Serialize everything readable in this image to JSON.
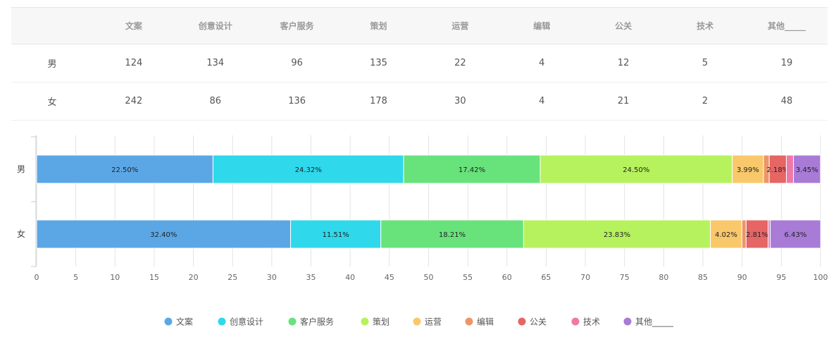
{
  "table": {
    "corner": "",
    "headers": [
      "文案",
      "创意设计",
      "客户服务",
      "策划",
      "运营",
      "编辑",
      "公关",
      "技术",
      "其他_____"
    ],
    "rows": [
      {
        "label": "男",
        "values": [
          "124",
          "134",
          "96",
          "135",
          "22",
          "4",
          "12",
          "5",
          "19"
        ]
      },
      {
        "label": "女",
        "values": [
          "242",
          "86",
          "136",
          "178",
          "30",
          "4",
          "21",
          "2",
          "48"
        ]
      }
    ]
  },
  "chart_data": {
    "type": "bar",
    "orientation": "horizontal",
    "stacked": true,
    "categories": [
      "男",
      "女"
    ],
    "xlim": [
      0,
      100
    ],
    "xticks": [
      0,
      5,
      10,
      15,
      20,
      25,
      30,
      35,
      40,
      45,
      50,
      55,
      60,
      65,
      70,
      75,
      80,
      85,
      90,
      95,
      100
    ],
    "grid": true,
    "legend_position": "bottom",
    "series": [
      {
        "name": "文案",
        "color": "#5ba7e6",
        "values": [
          22.5,
          32.4
        ],
        "labels": [
          "22.50%",
          "32.40%"
        ]
      },
      {
        "name": "创意设计",
        "color": "#2fd8ea",
        "values": [
          24.32,
          11.51
        ],
        "labels": [
          "24.32%",
          "11.51%"
        ]
      },
      {
        "name": "客户服务",
        "color": "#68e27b",
        "values": [
          17.42,
          18.21
        ],
        "labels": [
          "17.42%",
          "18.21%"
        ]
      },
      {
        "name": "策划",
        "color": "#b6f25e",
        "values": [
          24.5,
          23.83
        ],
        "labels": [
          "24.50%",
          "23.83%"
        ]
      },
      {
        "name": "运营",
        "color": "#f8c86a",
        "values": [
          3.99,
          4.02
        ],
        "labels": [
          "3.99%",
          "4.02%"
        ]
      },
      {
        "name": "编辑",
        "color": "#ee9566",
        "values": [
          0.73,
          0.54
        ],
        "labels": [
          "",
          ""
        ]
      },
      {
        "name": "公关",
        "color": "#e66565",
        "values": [
          2.18,
          2.81
        ],
        "labels": [
          "2.18%",
          "2.81%"
        ]
      },
      {
        "name": "技术",
        "color": "#ee78a8",
        "values": [
          0.91,
          0.27
        ],
        "labels": [
          "",
          ""
        ]
      },
      {
        "name": "其他_____",
        "color": "#a87bd6",
        "values": [
          3.45,
          6.43
        ],
        "labels": [
          "3.45%",
          "6.43%"
        ]
      }
    ]
  }
}
